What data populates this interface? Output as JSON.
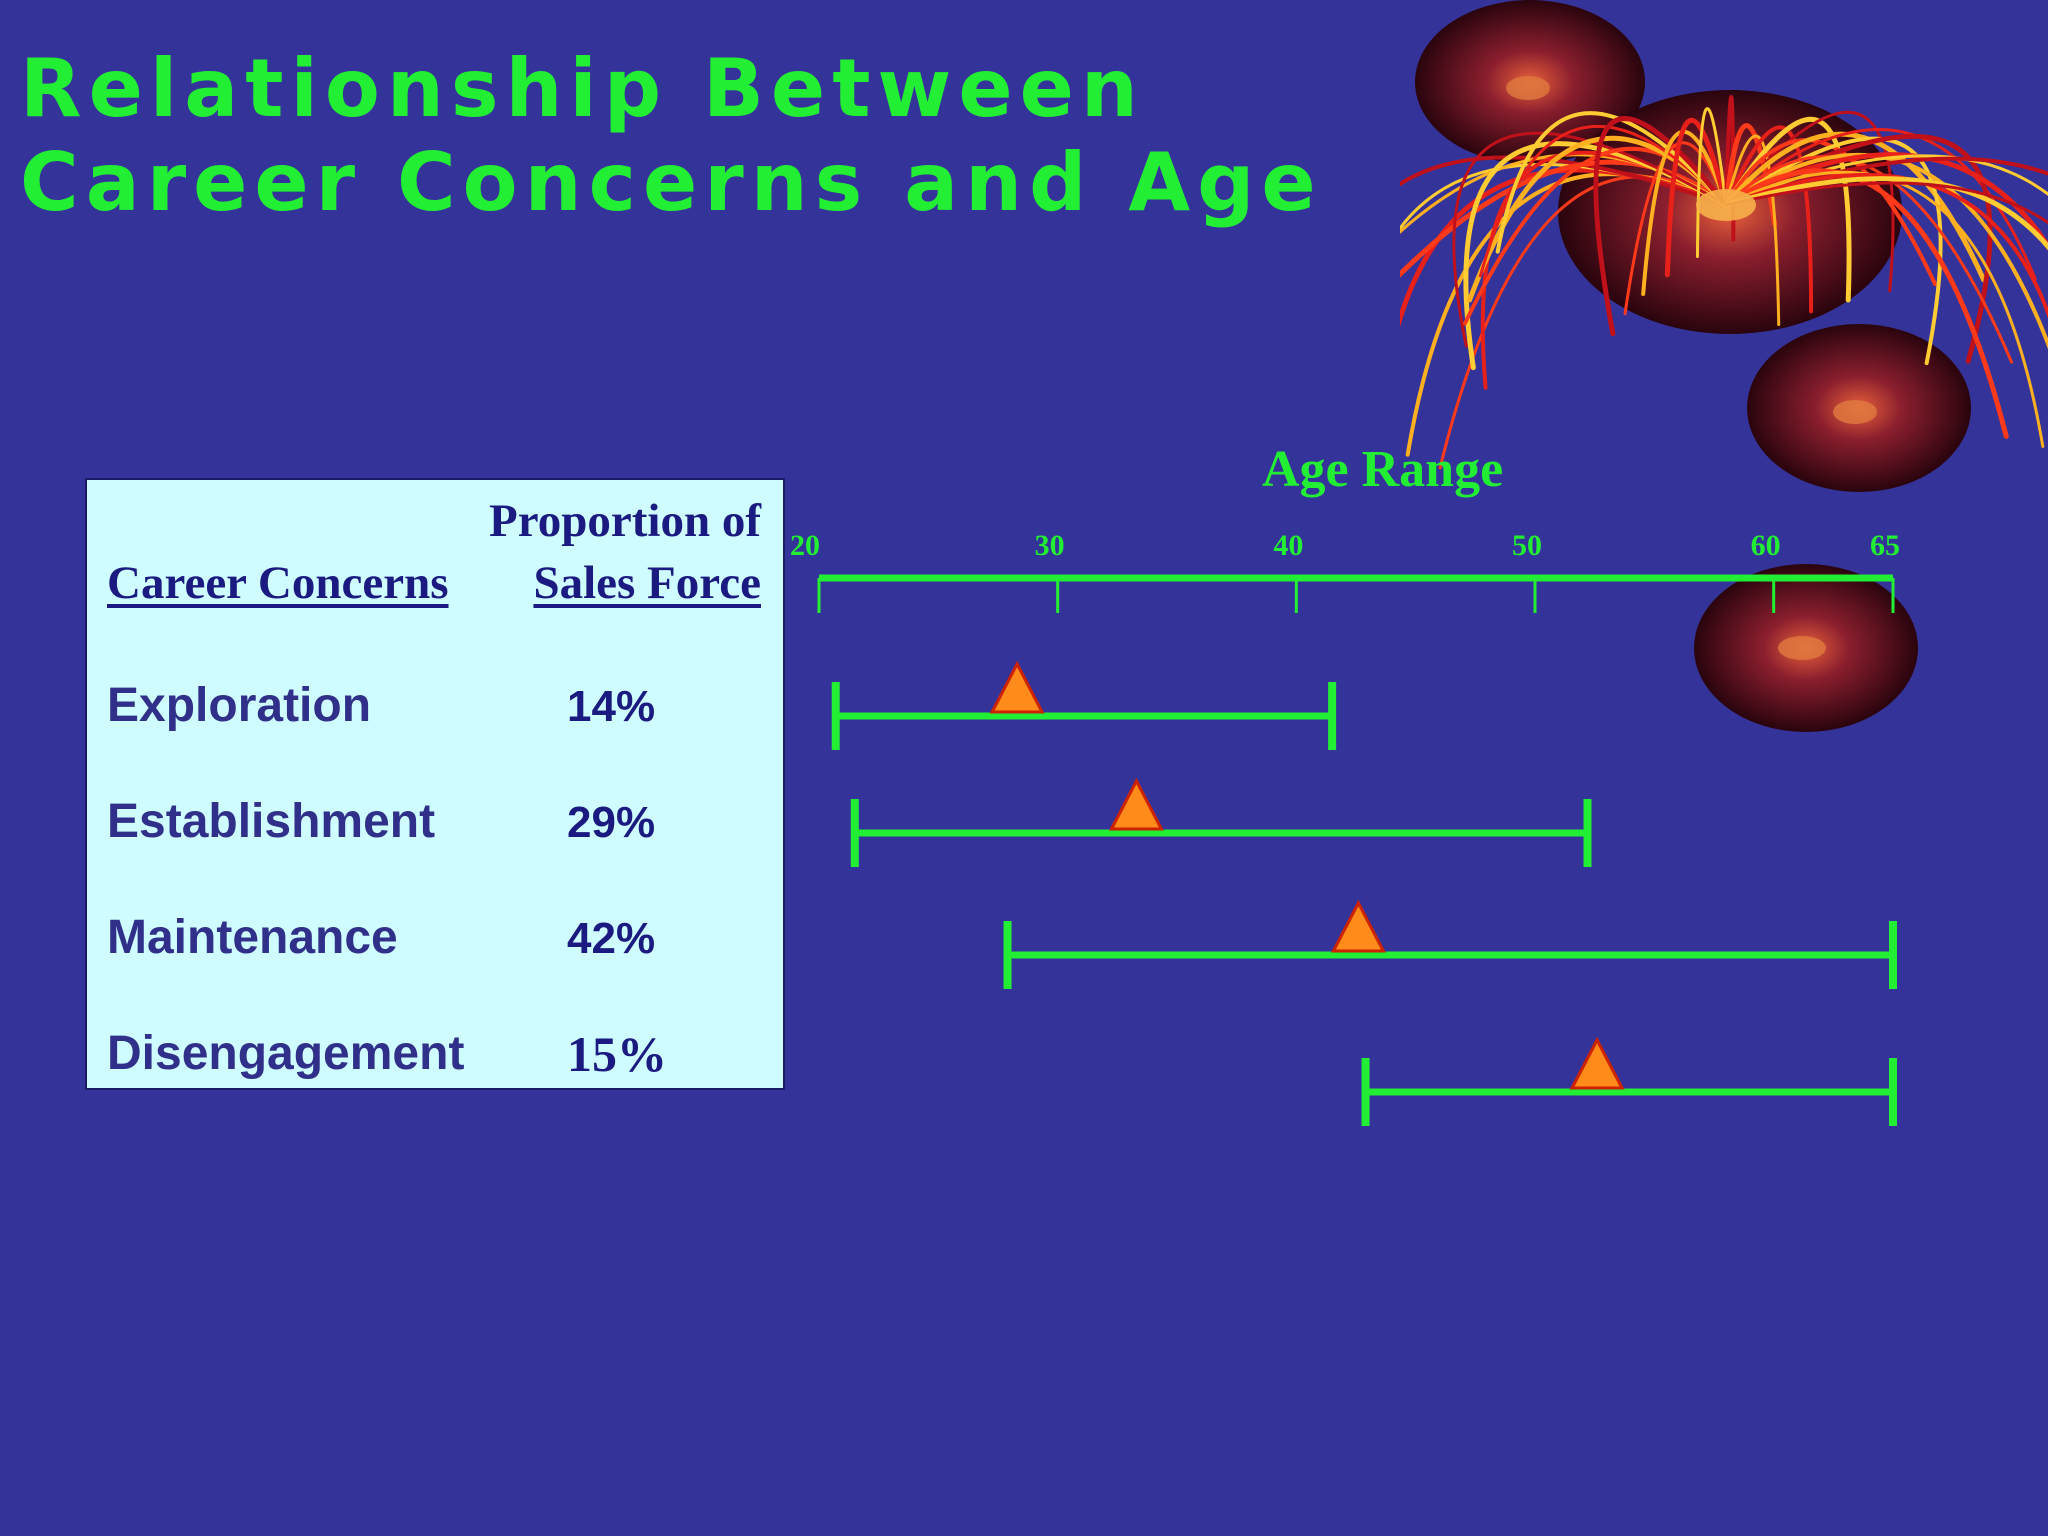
{
  "title": {
    "line1": "Relationship Between",
    "line2": "Career Concerns and Age"
  },
  "table": {
    "header_proportion": "Proportion of",
    "header_concerns": "Career Concerns",
    "header_sales": "Sales Force",
    "rows": [
      {
        "label": "Exploration",
        "value": "14%"
      },
      {
        "label": "Establishment",
        "value": "29%"
      },
      {
        "label": "Maintenance",
        "value": "42%"
      },
      {
        "label": "Disengagement",
        "value": "15%"
      }
    ]
  },
  "chart_data": {
    "type": "range",
    "title": "Age Range",
    "xlim": [
      20,
      65
    ],
    "ticks": [
      20,
      30,
      40,
      50,
      60,
      65
    ],
    "series": [
      {
        "category": "Exploration",
        "start": 20.7,
        "end": 41.5,
        "marker": 28.3
      },
      {
        "category": "Establishment",
        "start": 21.5,
        "end": 52.2,
        "marker": 33.3
      },
      {
        "category": "Maintenance",
        "start": 27.9,
        "end": 65,
        "marker": 42.6
      },
      {
        "category": "Disengagement",
        "start": 42.9,
        "end": 65,
        "marker": 52.6
      }
    ],
    "colors": {
      "line": "#22ee33",
      "marker_fill": "#ff8c1a",
      "marker_stroke": "#cc2200"
    }
  },
  "colors": {
    "background": "#343399",
    "title": "#22ee33",
    "panel": "#cffdff"
  }
}
